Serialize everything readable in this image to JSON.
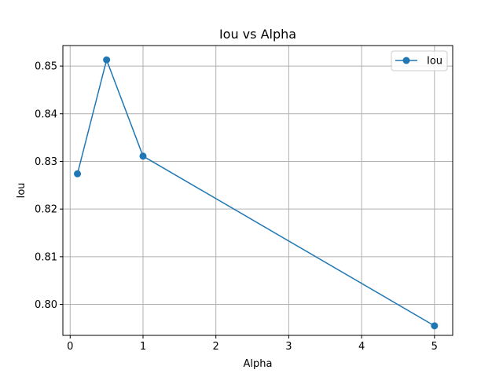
{
  "chart_data": {
    "type": "line",
    "title": "Iou vs Alpha",
    "xlabel": "Alpha",
    "ylabel": "Iou",
    "xlim": [
      -0.1,
      5.25
    ],
    "ylim": [
      0.7935,
      0.8543
    ],
    "xticks": [
      0,
      1,
      2,
      3,
      4,
      5
    ],
    "xtick_labels": [
      "0",
      "1",
      "2",
      "3",
      "4",
      "5"
    ],
    "yticks": [
      0.8,
      0.81,
      0.82,
      0.83,
      0.84,
      0.85
    ],
    "ytick_labels": [
      "0.80",
      "0.81",
      "0.82",
      "0.83",
      "0.84",
      "0.85"
    ],
    "grid": true,
    "legend_position": "top-right",
    "series": [
      {
        "name": "Iou",
        "color": "#1f77b4",
        "marker": "circle",
        "x": [
          0.1,
          0.5,
          1,
          5
        ],
        "y": [
          0.8274,
          0.8513,
          0.8311,
          0.7955
        ]
      }
    ]
  }
}
